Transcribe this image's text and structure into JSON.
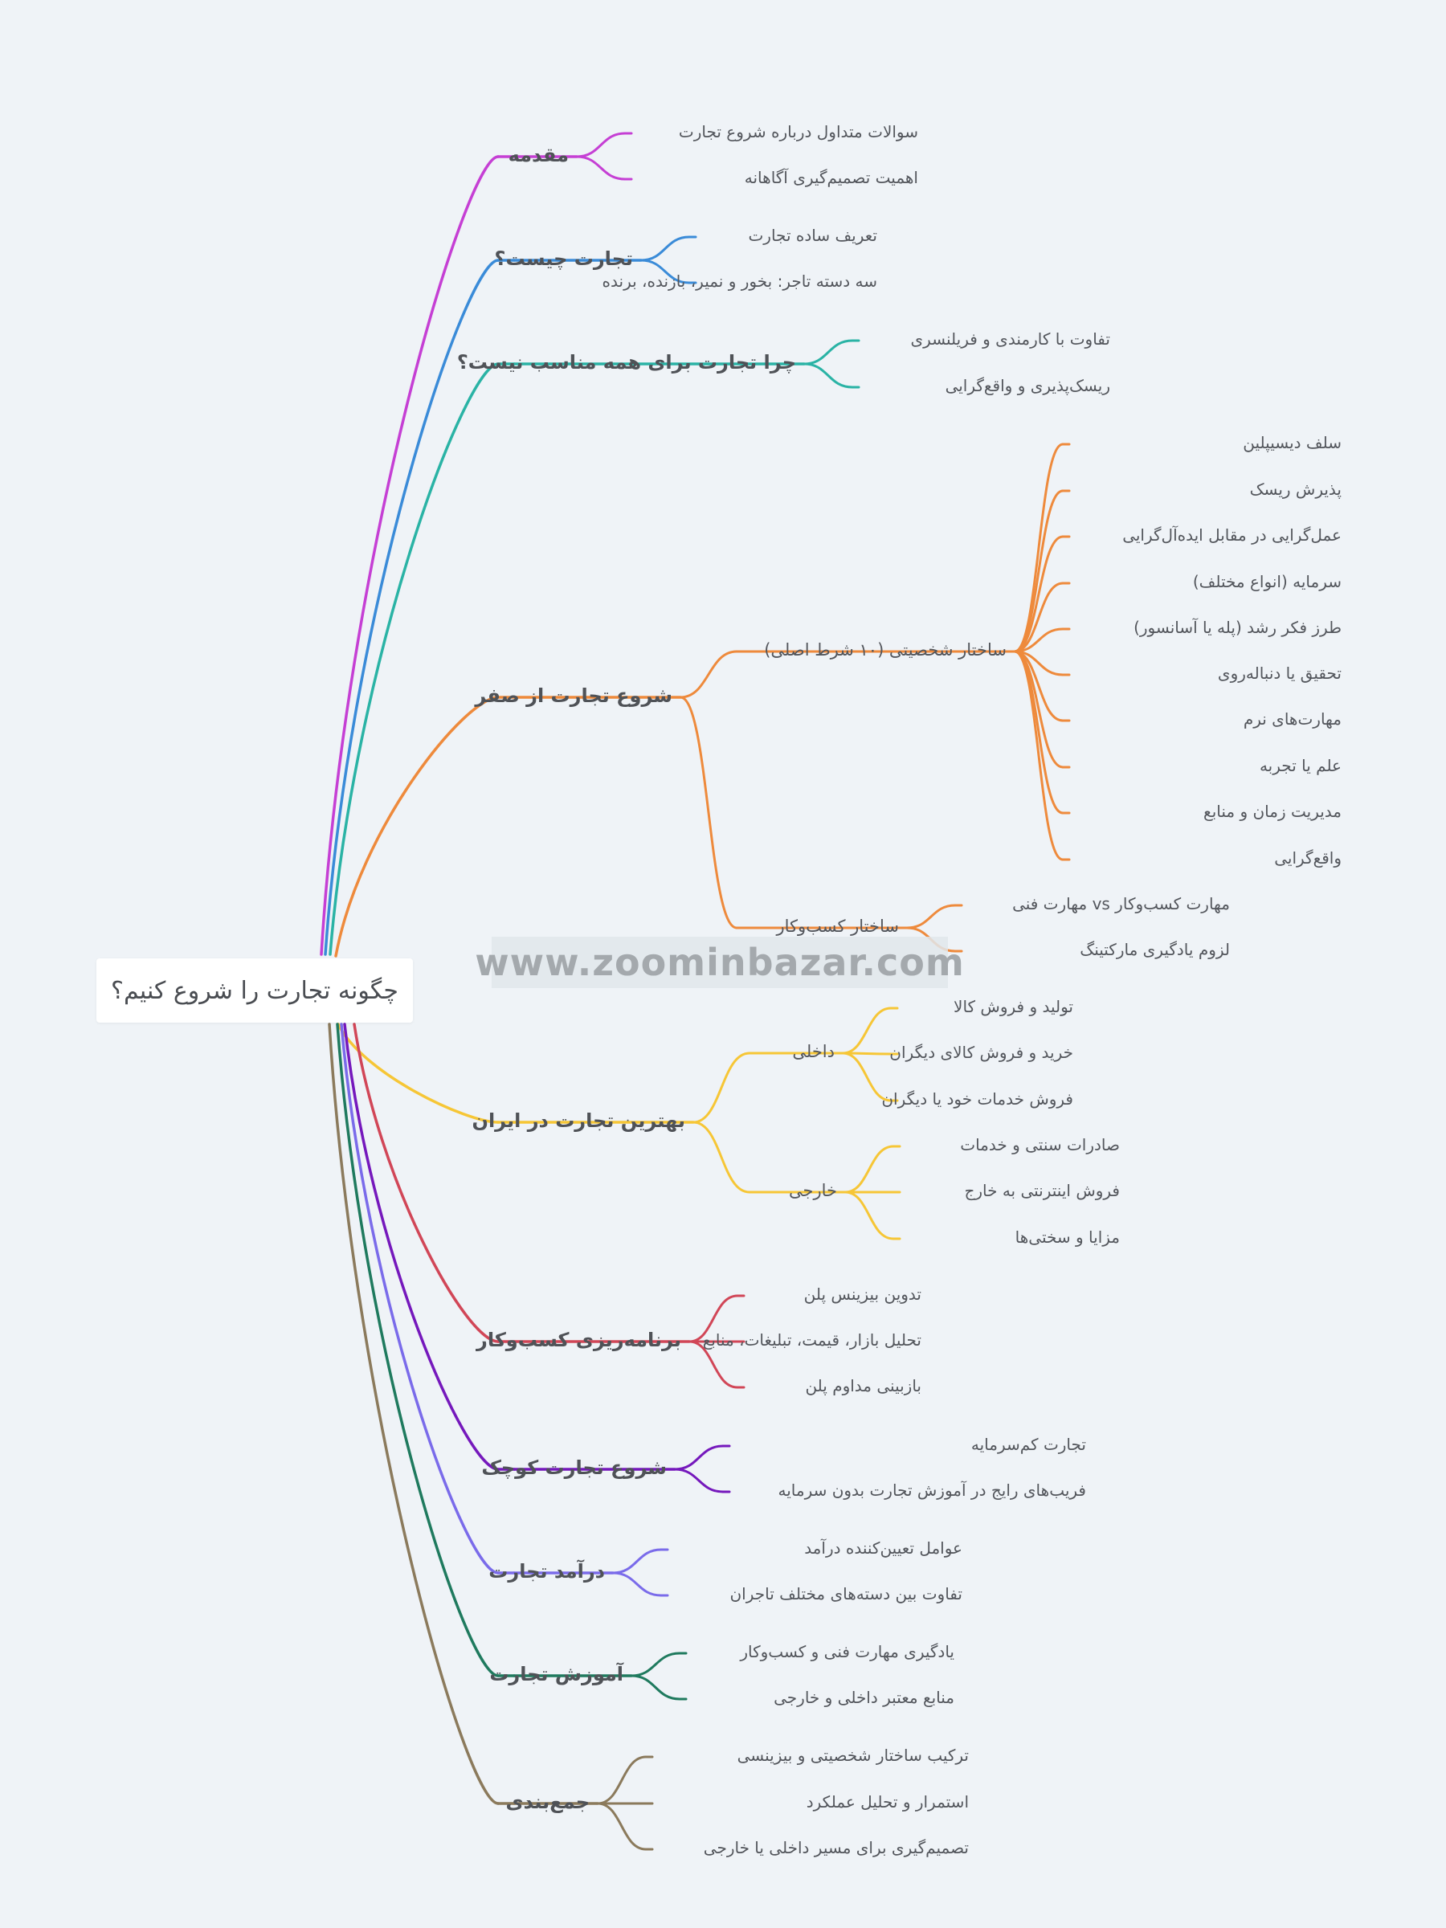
{
  "mindmap": {
    "root": "چگونه تجارت را شروع کنیم؟",
    "watermark": "www.zoominbazar.com",
    "branches": [
      {
        "label": "مقدمه",
        "color": "#c53fd4",
        "children": [
          {
            "label": "سوالات متداول درباره شروع تجارت"
          },
          {
            "label": "اهمیت تصمیم‌گیری آگاهانه"
          }
        ]
      },
      {
        "label": "تجارت چیست؟",
        "color": "#3a8bd8",
        "children": [
          {
            "label": "تعریف ساده تجارت"
          },
          {
            "label": "سه دسته تاجر: بخور و نمیر، بازنده، برنده"
          }
        ]
      },
      {
        "label": "چرا تجارت برای همه مناسب نیست؟",
        "color": "#2ab3a5",
        "children": [
          {
            "label": "تفاوت با کارمندی و فریلنسری"
          },
          {
            "label": "ریسک‌پذیری و واقع‌گرایی"
          }
        ]
      },
      {
        "label": "شروع تجارت از صفر",
        "color": "#ee8a3c",
        "children": [
          {
            "label": "ساختار شخصیتی (۱۰ شرط اصلی)",
            "children": [
              {
                "label": "سلف دیسیپلین"
              },
              {
                "label": "پذیرش ریسک"
              },
              {
                "label": "عمل‌گرایی در مقابل ایده‌آل‌گرایی"
              },
              {
                "label": "سرمایه (انواع مختلف)"
              },
              {
                "label": "طرز فکر رشد (پله یا آسانسور)"
              },
              {
                "label": "تحقیق یا دنباله‌روی"
              },
              {
                "label": "مهارت‌های نرم"
              },
              {
                "label": "علم یا تجربه"
              },
              {
                "label": "مدیریت زمان و منابع"
              },
              {
                "label": "واقع‌گرایی"
              }
            ]
          },
          {
            "label": "ساختار کسب‌وکار",
            "children": [
              {
                "label": "مهارت کسب‌وکار vs مهارت فنی"
              },
              {
                "label": "لزوم یادگیری مارکتینگ"
              }
            ]
          }
        ]
      },
      {
        "label": "بهترین تجارت در ایران",
        "color": "#f6c636",
        "children": [
          {
            "label": "داخلی",
            "children": [
              {
                "label": "تولید و فروش کالا"
              },
              {
                "label": "خرید و فروش کالای دیگران"
              },
              {
                "label": "فروش خدمات خود یا دیگران"
              }
            ]
          },
          {
            "label": "خارجی",
            "children": [
              {
                "label": "صادرات سنتی و خدمات"
              },
              {
                "label": "فروش اینترنتی به خارج"
              },
              {
                "label": "مزایا و سختی‌ها"
              }
            ]
          }
        ]
      },
      {
        "label": "برنامه‌ریزی کسب‌وکار",
        "color": "#d14657",
        "children": [
          {
            "label": "تدوین بیزینس پلن"
          },
          {
            "label": "تحلیل بازار، قیمت، تبلیغات، منابع"
          },
          {
            "label": "بازبینی مداوم پلن"
          }
        ]
      },
      {
        "label": "شروع تجارت کوچک",
        "color": "#7518bc",
        "children": [
          {
            "label": "تجارت کم‌سرمایه"
          },
          {
            "label": "فریب‌های رایج در آموزش تجارت بدون سرمایه"
          }
        ]
      },
      {
        "label": "درآمد تجارت",
        "color": "#7a6bea",
        "children": [
          {
            "label": "عوامل تعیین‌کننده درآمد"
          },
          {
            "label": "تفاوت بین دسته‌های مختلف تاجران"
          }
        ]
      },
      {
        "label": "آموزش تجارت",
        "color": "#1f7a5e",
        "children": [
          {
            "label": "یادگیری مهارت فنی و کسب‌وکار"
          },
          {
            "label": "منابع معتبر داخلی و خارجی"
          }
        ]
      },
      {
        "label": "جمع‌بندی",
        "color": "#8b7a5c",
        "children": [
          {
            "label": "ترکیب ساختار شخصیتی و بیزینسی"
          },
          {
            "label": "استمرار و تحلیل عملکرد"
          },
          {
            "label": "تصمیم‌گیری برای مسیر داخلی یا خارجی"
          }
        ]
      }
    ]
  }
}
